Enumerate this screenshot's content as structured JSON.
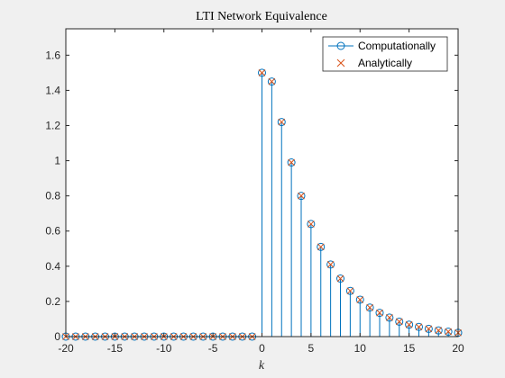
{
  "chart_data": {
    "type": "stem",
    "title": "LTI Network Equivalence",
    "xlabel": "k",
    "ylabel": "",
    "xlim": [
      -20,
      20
    ],
    "ylim": [
      0,
      1.75
    ],
    "grid": false,
    "legend_position": "top-right",
    "x_ticks": [
      -20,
      -15,
      -10,
      -5,
      0,
      5,
      10,
      15,
      20
    ],
    "x_tick_labels": [
      "-20",
      "-15",
      "-10",
      "-5",
      "0",
      "5",
      "10",
      "15",
      "20"
    ],
    "y_ticks": [
      0,
      0.2,
      0.4,
      0.6,
      0.8,
      1,
      1.2,
      1.4,
      1.6
    ],
    "y_tick_labels": [
      "0",
      "0.2",
      "0.4",
      "0.6",
      "0.8",
      "1",
      "1.2",
      "1.4",
      "1.6"
    ],
    "x": [
      -20,
      -19,
      -18,
      -17,
      -16,
      -15,
      -14,
      -13,
      -12,
      -11,
      -10,
      -9,
      -8,
      -7,
      -6,
      -5,
      -4,
      -3,
      -2,
      -1,
      0,
      1,
      2,
      3,
      4,
      5,
      6,
      7,
      8,
      9,
      10,
      11,
      12,
      13,
      14,
      15,
      16,
      17,
      18,
      19,
      20
    ],
    "series": [
      {
        "name": "Computationally",
        "marker": "circle-stem",
        "color": "#0072BD",
        "values": [
          0,
          0,
          0,
          0,
          0,
          0,
          0,
          0,
          0,
          0,
          0,
          0,
          0,
          0,
          0,
          0,
          0,
          0,
          0,
          0,
          1.5,
          1.45,
          1.22,
          0.99,
          0.8,
          0.64,
          0.51,
          0.41,
          0.33,
          0.26,
          0.21,
          0.165,
          0.135,
          0.108,
          0.085,
          0.068,
          0.055,
          0.044,
          0.035,
          0.028,
          0.022
        ]
      },
      {
        "name": "Analytically",
        "marker": "x",
        "color": "#D95319",
        "values": [
          0,
          0,
          0,
          0,
          0,
          0,
          0,
          0,
          0,
          0,
          0,
          0,
          0,
          0,
          0,
          0,
          0,
          0,
          0,
          0,
          1.5,
          1.45,
          1.22,
          0.99,
          0.8,
          0.64,
          0.51,
          0.41,
          0.33,
          0.26,
          0.21,
          0.165,
          0.135,
          0.108,
          0.085,
          0.068,
          0.055,
          0.044,
          0.035,
          0.028,
          0.022
        ]
      }
    ]
  }
}
